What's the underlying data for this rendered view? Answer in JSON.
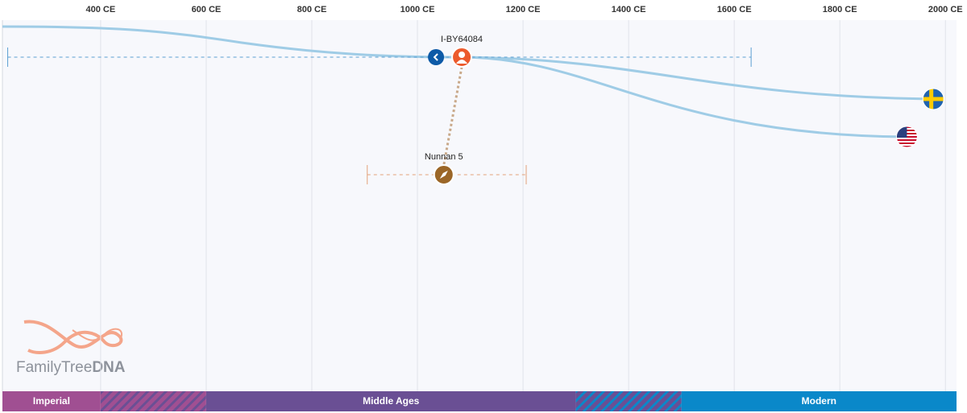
{
  "chart_data": {
    "type": "timeline",
    "xlim": [
      214,
      2021
    ],
    "xticks": [
      {
        "value": 400,
        "label": "400 CE"
      },
      {
        "value": 600,
        "label": "600 CE"
      },
      {
        "value": 800,
        "label": "800 CE"
      },
      {
        "value": 1000,
        "label": "1000 CE"
      },
      {
        "value": 1200,
        "label": "1200 CE"
      },
      {
        "value": 1400,
        "label": "1400 CE"
      },
      {
        "value": 1600,
        "label": "1600 CE"
      },
      {
        "value": 1800,
        "label": "1800 CE"
      },
      {
        "value": 2000,
        "label": "2000 CE"
      }
    ],
    "grid": true,
    "samples": [
      {
        "name": "I-BY64084",
        "year": 1084,
        "range": [
          224,
          1632
        ],
        "color": "#ec5a2c",
        "range_color": "#5b9fd2"
      },
      {
        "name": "Nunnan 5",
        "year": 1050,
        "range": [
          905,
          1206
        ],
        "color": "#9b6627",
        "range_color": "#e3a27a"
      }
    ],
    "leaf_years": [
      1977,
      1927
    ],
    "line_color": "#9fcce6",
    "eras": [
      {
        "name": "Imperial",
        "range": [
          214,
          400
        ],
        "color": "#a04f92"
      },
      {
        "name": "Middle Ages",
        "range": [
          600,
          1300
        ],
        "color": "#6a4f94"
      },
      {
        "name": "Modern",
        "range": [
          1500,
          2021
        ],
        "color": "#0a88c9"
      }
    ]
  },
  "logo": {
    "name": "FamilyTree",
    "suffix": "DNA"
  }
}
